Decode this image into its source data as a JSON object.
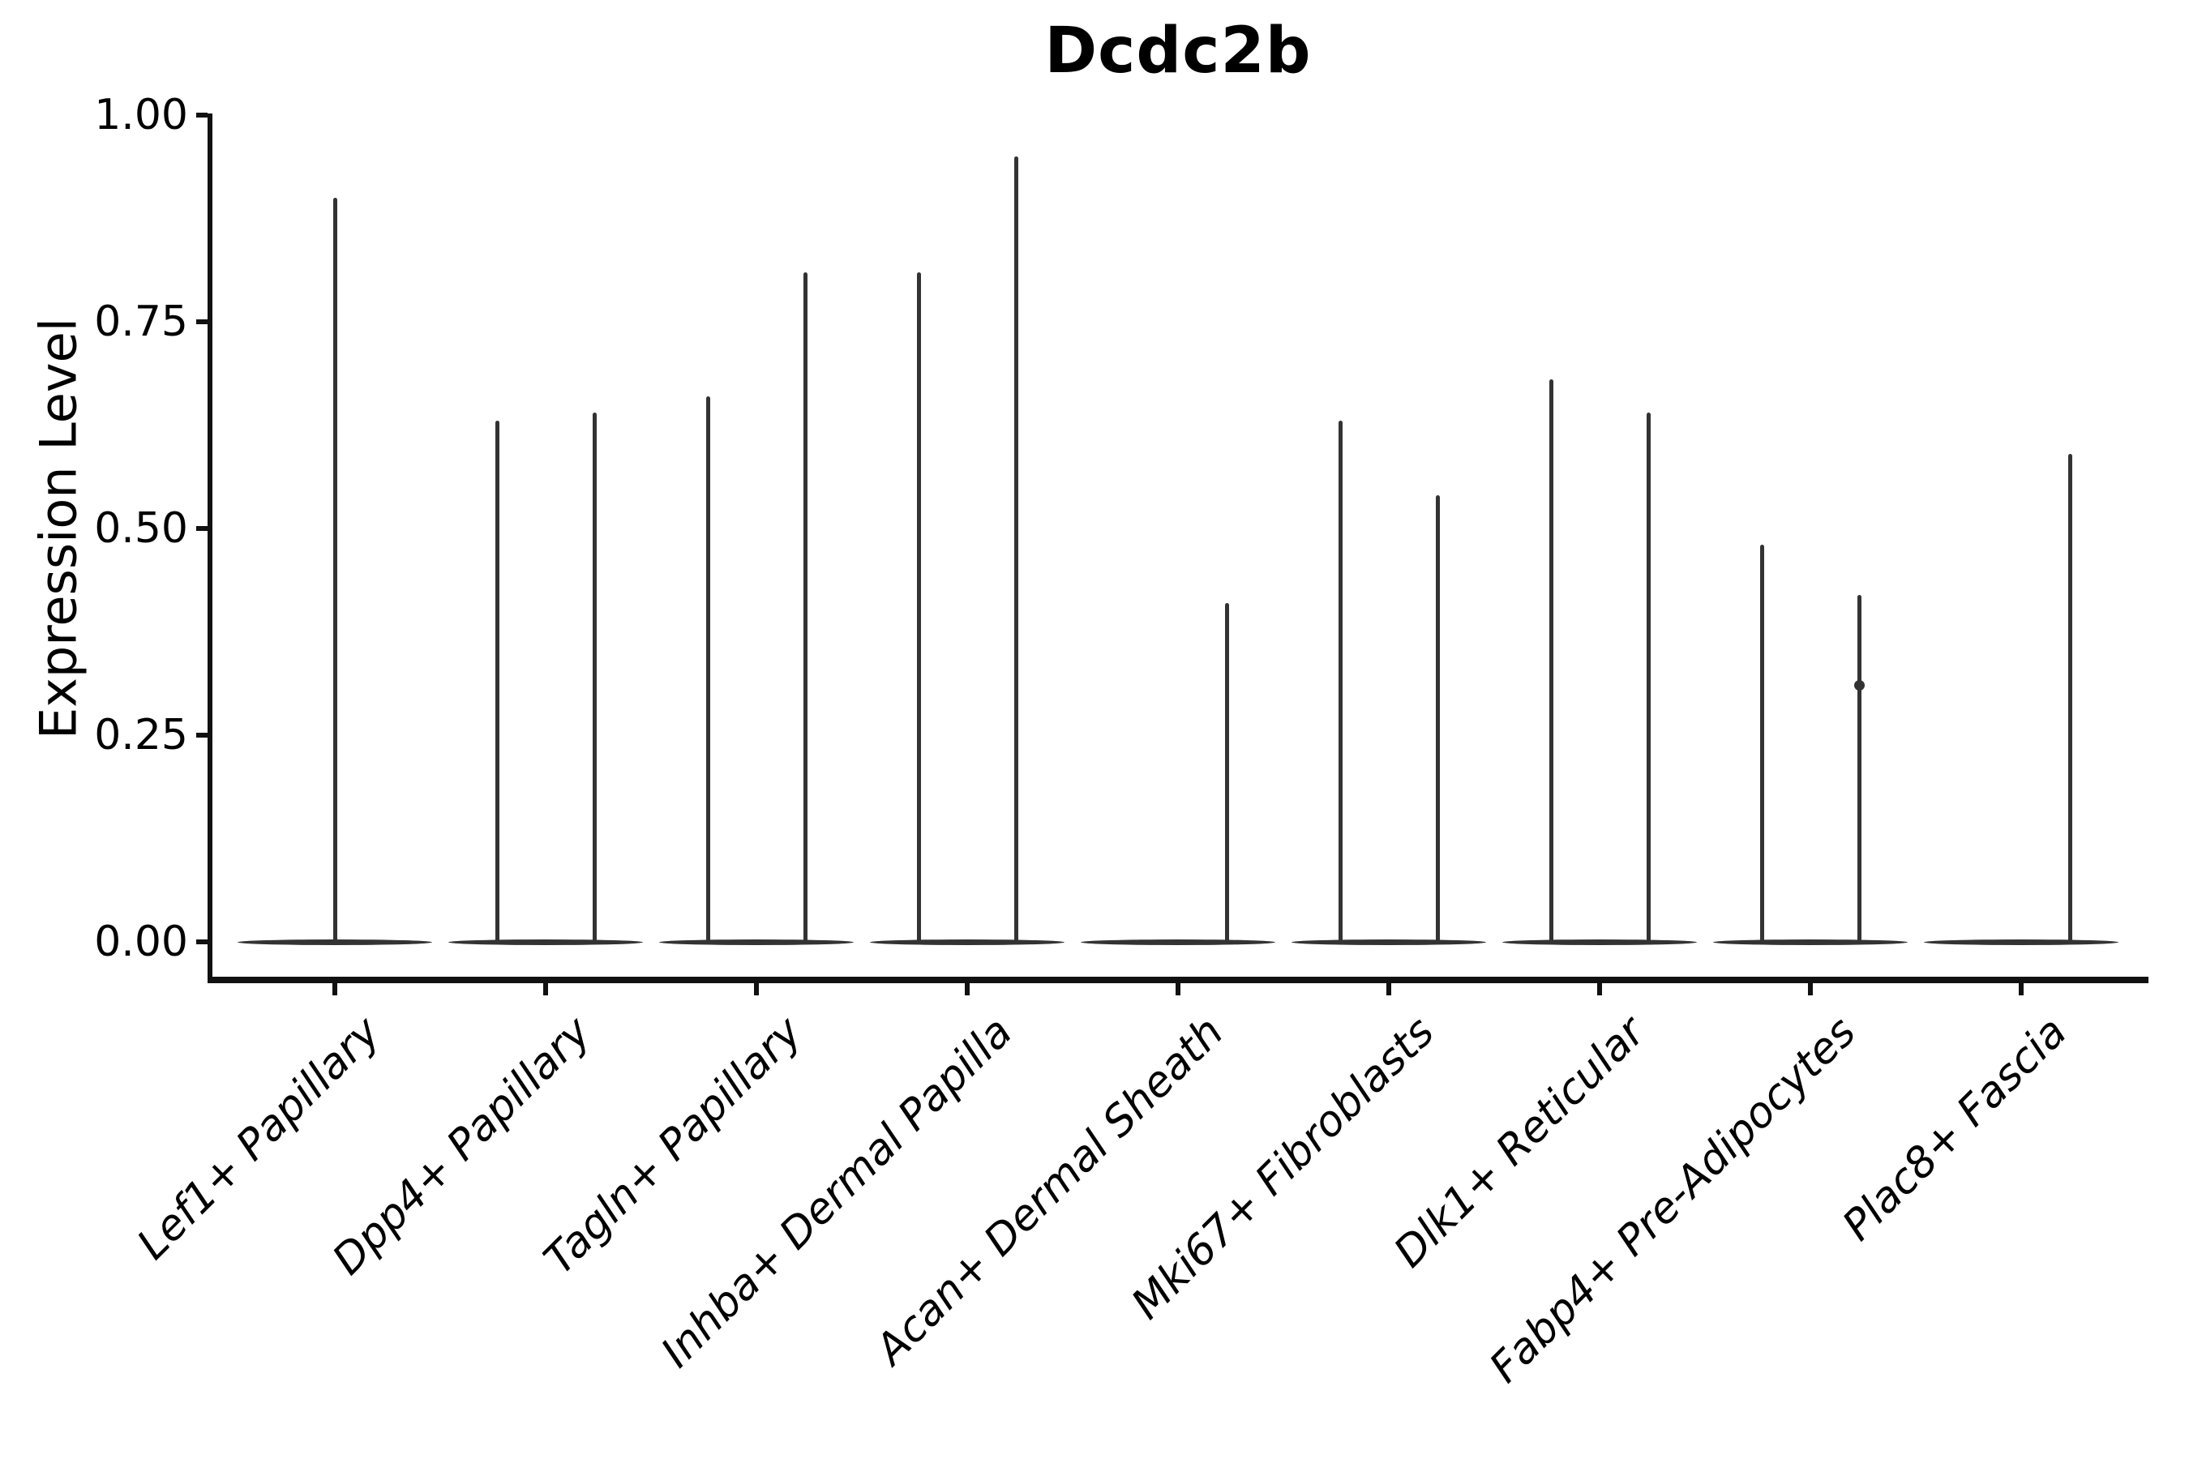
{
  "title": "Dcdc2b",
  "y_axis": {
    "label": "Expression Level",
    "ticks": [
      "1.00",
      "0.75",
      "0.50",
      "0.25",
      "0.00"
    ],
    "tick_values": [
      1.0,
      0.75,
      0.5,
      0.25,
      0.0
    ]
  },
  "chart_data": {
    "type": "violin",
    "title": "Dcdc2b",
    "xlabel": "",
    "ylabel": "Expression Level",
    "ylim": [
      0.0,
      1.0
    ],
    "grid": false,
    "legend": "none",
    "line_color": "#333333",
    "axis_color": "#111111",
    "categories": [
      "Lef1+ Papillary",
      "Dpp4+ Papillary",
      "Tagln+ Papillary",
      "Inhba+ Dermal Papilla",
      "Acan+ Dermal Sheath",
      "Mki67+ Fibroblasts",
      "Dlk1+ Reticular",
      "Fabp4+ Pre-Adipocytes",
      "Plac8+ Fascia"
    ],
    "violins": [
      {
        "category": "Lef1+ Papillary",
        "base_value": 0,
        "spikes": [
          {
            "offset": 0,
            "max": 0.9,
            "dots": []
          }
        ]
      },
      {
        "category": "Dpp4+ Papillary",
        "base_value": 0,
        "spikes": [
          {
            "offset": -1,
            "max": 0.63,
            "dots": []
          },
          {
            "offset": 1,
            "max": 0.64,
            "dots": []
          }
        ]
      },
      {
        "category": "Tagln+ Papillary",
        "base_value": 0,
        "spikes": [
          {
            "offset": -1,
            "max": 0.66,
            "dots": []
          },
          {
            "offset": 1,
            "max": 0.81,
            "dots": []
          }
        ]
      },
      {
        "category": "Inhba+ Dermal Papilla",
        "base_value": 0,
        "spikes": [
          {
            "offset": -1,
            "max": 0.81,
            "dots": []
          },
          {
            "offset": 1,
            "max": 0.95,
            "dots": []
          }
        ]
      },
      {
        "category": "Acan+ Dermal Sheath",
        "base_value": 0,
        "spikes": [
          {
            "offset": 1,
            "max": 0.41,
            "dots": []
          }
        ]
      },
      {
        "category": "Mki67+ Fibroblasts",
        "base_value": 0,
        "spikes": [
          {
            "offset": -1,
            "max": 0.63,
            "dots": []
          },
          {
            "offset": 1,
            "max": 0.54,
            "dots": []
          }
        ]
      },
      {
        "category": "Dlk1+ Reticular",
        "base_value": 0,
        "spikes": [
          {
            "offset": -1,
            "max": 0.68,
            "dots": []
          },
          {
            "offset": 1,
            "max": 0.64,
            "dots": []
          }
        ]
      },
      {
        "category": "Fabp4+ Pre-Adipocytes",
        "base_value": 0,
        "spikes": [
          {
            "offset": -1,
            "max": 0.48,
            "dots": []
          },
          {
            "offset": 1,
            "max": 0.42,
            "dots": [
              0.31
            ]
          }
        ]
      },
      {
        "category": "Plac8+ Fascia",
        "base_value": 0,
        "spikes": [
          {
            "offset": 1,
            "max": 0.59,
            "dots": []
          }
        ]
      }
    ]
  }
}
